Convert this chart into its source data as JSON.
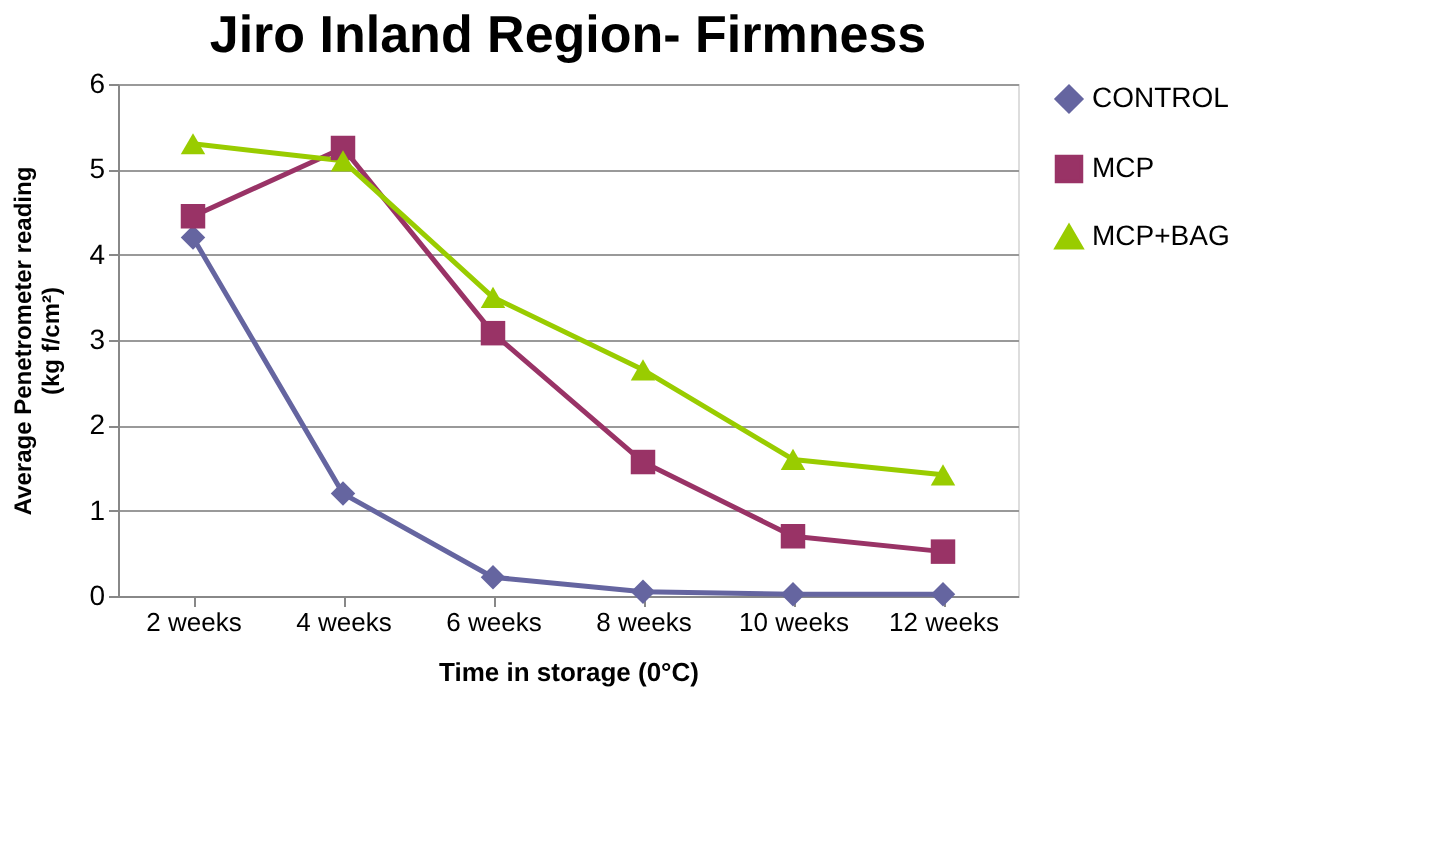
{
  "chart_data": {
    "type": "line",
    "title": "Jiro Inland Region- Firmness",
    "xlabel": "Time in storage (0°C)",
    "ylabel": "Average Penetrometer reading (kg f/cm²)",
    "categories": [
      "2 weeks",
      "4 weeks",
      "6 weeks",
      "8 weeks",
      "10 weeks",
      "12 weeks"
    ],
    "series": [
      {
        "name": "CONTROL",
        "color": "#6565a0",
        "marker": "diamond",
        "values": [
          4.2,
          1.2,
          0.22,
          0.05,
          0.02,
          0.02
        ]
      },
      {
        "name": "MCP",
        "color": "#993366",
        "marker": "square",
        "values": [
          4.45,
          5.25,
          3.08,
          1.57,
          0.7,
          0.52
        ]
      },
      {
        "name": "MCP+BAG",
        "color": "#99cc00",
        "marker": "triangle",
        "values": [
          5.3,
          5.1,
          3.5,
          2.65,
          1.6,
          1.42
        ]
      }
    ],
    "ylim": [
      0,
      6
    ],
    "yticks": [
      0,
      1,
      2,
      3,
      4,
      5,
      6
    ],
    "grid": "y",
    "legend": "right",
    "line_style": "solid"
  }
}
